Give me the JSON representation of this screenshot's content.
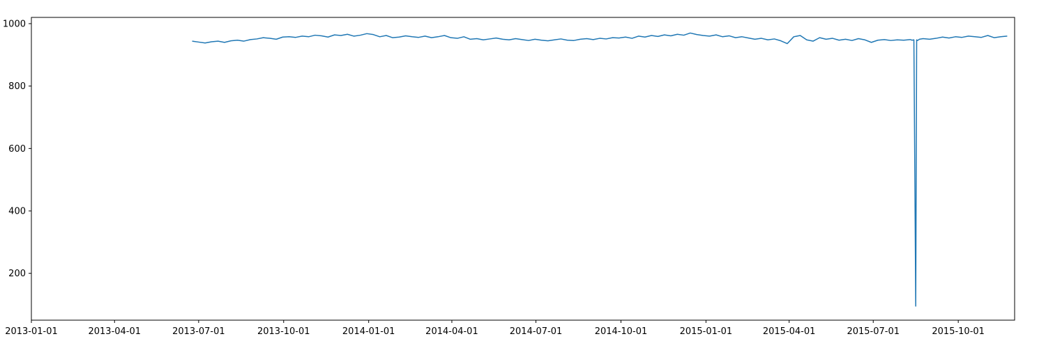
{
  "chart_data": {
    "type": "line",
    "title": "",
    "xlabel": "",
    "ylabel": "",
    "x_type": "date",
    "xlim": [
      "2013-01-01",
      "2015-12-01"
    ],
    "ylim": [
      50,
      1020
    ],
    "grid": false,
    "legend": "none",
    "x_ticks": [
      "2013-01-01",
      "2013-04-01",
      "2013-07-01",
      "2013-10-01",
      "2014-01-01",
      "2014-04-01",
      "2014-07-01",
      "2014-10-01",
      "2015-01-01",
      "2015-04-01",
      "2015-07-01",
      "2015-10-01"
    ],
    "y_ticks": [
      200,
      400,
      600,
      800,
      1000
    ],
    "colors": {
      "line": "#1f77b4",
      "axes": "#000000",
      "background": "#ffffff"
    },
    "series": [
      {
        "x": [
          "2013-06-24",
          "2013-07-01",
          "2013-07-08",
          "2013-07-15",
          "2013-07-22",
          "2013-07-29",
          "2013-08-05",
          "2013-08-12",
          "2013-08-19",
          "2013-08-26",
          "2013-09-02",
          "2013-09-09",
          "2013-09-16",
          "2013-09-23",
          "2013-09-30",
          "2013-10-07",
          "2013-10-14",
          "2013-10-21",
          "2013-10-28",
          "2013-11-04",
          "2013-11-11",
          "2013-11-18",
          "2013-11-25",
          "2013-12-02",
          "2013-12-09",
          "2013-12-16",
          "2013-12-23",
          "2013-12-30",
          "2014-01-06",
          "2014-01-13",
          "2014-01-20",
          "2014-01-27",
          "2014-02-03",
          "2014-02-10",
          "2014-02-17",
          "2014-02-24",
          "2014-03-03",
          "2014-03-10",
          "2014-03-17",
          "2014-03-24",
          "2014-03-31",
          "2014-04-07",
          "2014-04-14",
          "2014-04-21",
          "2014-04-28",
          "2014-05-05",
          "2014-05-12",
          "2014-05-19",
          "2014-05-26",
          "2014-06-02",
          "2014-06-09",
          "2014-06-16",
          "2014-06-23",
          "2014-06-30",
          "2014-07-07",
          "2014-07-14",
          "2014-07-21",
          "2014-07-28",
          "2014-08-04",
          "2014-08-11",
          "2014-08-18",
          "2014-08-25",
          "2014-09-01",
          "2014-09-08",
          "2014-09-15",
          "2014-09-22",
          "2014-09-29",
          "2014-10-06",
          "2014-10-13",
          "2014-10-20",
          "2014-10-27",
          "2014-11-03",
          "2014-11-10",
          "2014-11-17",
          "2014-11-24",
          "2014-12-01",
          "2014-12-08",
          "2014-12-15",
          "2014-12-22",
          "2014-12-29",
          "2015-01-05",
          "2015-01-12",
          "2015-01-19",
          "2015-01-26",
          "2015-02-02",
          "2015-02-09",
          "2015-02-16",
          "2015-02-23",
          "2015-03-02",
          "2015-03-09",
          "2015-03-16",
          "2015-03-23",
          "2015-03-30",
          "2015-04-06",
          "2015-04-13",
          "2015-04-20",
          "2015-04-27",
          "2015-05-04",
          "2015-05-11",
          "2015-05-18",
          "2015-05-25",
          "2015-06-01",
          "2015-06-08",
          "2015-06-15",
          "2015-06-22",
          "2015-06-29",
          "2015-07-06",
          "2015-07-13",
          "2015-07-20",
          "2015-07-27",
          "2015-08-03",
          "2015-08-10",
          "2015-08-12",
          "2015-08-14",
          "2015-08-16",
          "2015-08-17",
          "2015-08-18",
          "2015-08-20",
          "2015-08-24",
          "2015-08-31",
          "2015-09-07",
          "2015-09-14",
          "2015-09-21",
          "2015-09-28",
          "2015-10-05",
          "2015-10-12",
          "2015-10-19",
          "2015-10-26",
          "2015-11-02",
          "2015-11-09",
          "2015-11-16",
          "2015-11-23"
        ],
        "values": [
          944,
          941,
          938,
          942,
          944,
          940,
          945,
          947,
          944,
          949,
          951,
          955,
          953,
          950,
          957,
          958,
          956,
          960,
          958,
          963,
          961,
          957,
          964,
          962,
          966,
          960,
          963,
          968,
          965,
          958,
          962,
          955,
          957,
          961,
          958,
          956,
          960,
          955,
          958,
          962,
          955,
          953,
          958,
          950,
          952,
          948,
          951,
          954,
          950,
          948,
          952,
          949,
          946,
          950,
          947,
          945,
          948,
          951,
          947,
          946,
          950,
          952,
          949,
          953,
          951,
          955,
          954,
          957,
          953,
          960,
          957,
          962,
          959,
          964,
          961,
          966,
          963,
          970,
          965,
          962,
          960,
          964,
          958,
          961,
          955,
          958,
          954,
          950,
          953,
          948,
          951,
          945,
          936,
          958,
          962,
          948,
          944,
          955,
          950,
          953,
          947,
          950,
          946,
          952,
          948,
          940,
          947,
          949,
          946,
          948,
          947,
          949,
          947,
          948,
          95,
          948,
          946,
          950,
          952,
          950,
          953,
          957,
          954,
          958,
          956,
          960,
          958,
          956,
          962,
          955,
          958,
          960
        ]
      }
    ]
  }
}
